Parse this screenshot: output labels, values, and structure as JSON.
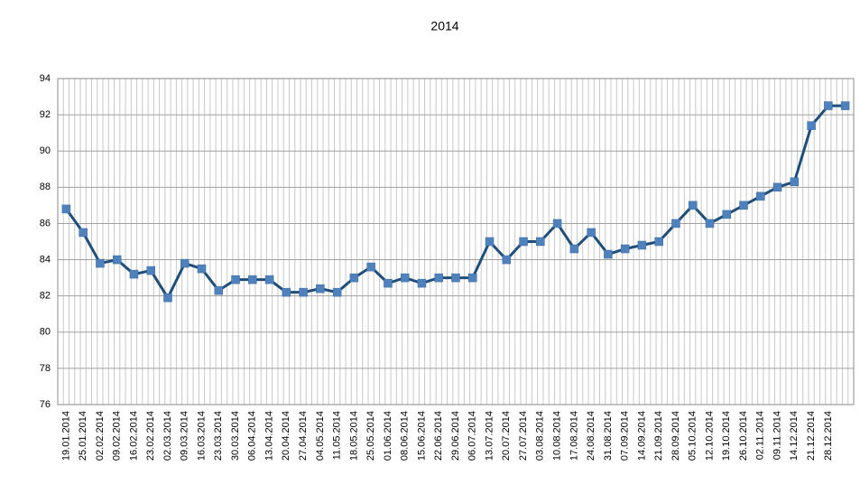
{
  "chart_data": {
    "type": "line",
    "title": "2014",
    "categories": [
      "19.01.2014",
      "25.01.2014",
      "02.02.2014",
      "09.02.2014",
      "16.02.2014",
      "23.02.2014",
      "02.03.2014",
      "09.03.2014",
      "16.03.2014",
      "23.03.2014",
      "30.03.2014",
      "06.04.2014",
      "13.04.2014",
      "20.04.2014",
      "27.04.2014",
      "04.05.2014",
      "11.05.2014",
      "18.05.2014",
      "25.05.2014",
      "01.06.2014",
      "08.06.2014",
      "15.06.2014",
      "22.06.2014",
      "29.06.2014",
      "06.07.2014",
      "13.07.2014",
      "20.07.2014",
      "27.07.2014",
      "03.08.2014",
      "10.08.2014",
      "17.08.2014",
      "24.08.2014",
      "31.08.2014",
      "07.09.2014",
      "14.09.2014",
      "21.09.2014",
      "28.09.2014",
      "05.10.2014",
      "12.10.2014",
      "19.10.2014",
      "26.10.2014",
      "02.11.2014",
      "09.11.2014",
      "14.12.2014",
      "21.12.2014",
      "28.12.2014",
      null
    ],
    "values": [
      86.8,
      85.5,
      83.8,
      84.0,
      83.2,
      83.4,
      81.9,
      83.8,
      83.5,
      82.3,
      82.9,
      82.9,
      82.9,
      82.2,
      82.2,
      82.4,
      82.2,
      83.0,
      83.6,
      82.7,
      83.0,
      82.7,
      83.0,
      83.0,
      83.0,
      85.0,
      84.0,
      85.0,
      85.0,
      86.0,
      84.6,
      85.5,
      84.3,
      84.6,
      84.8,
      85.0,
      86.0,
      87.0,
      86.0,
      86.5,
      87.0,
      87.5,
      88.0,
      88.3,
      91.4,
      92.5,
      92.5
    ],
    "color": "#1f4e79",
    "marker_color": "#4f81bd",
    "ylim": [
      76,
      94
    ],
    "yticks": [
      76,
      78,
      80,
      82,
      84,
      86,
      88,
      90,
      92,
      94
    ],
    "grid": true
  }
}
